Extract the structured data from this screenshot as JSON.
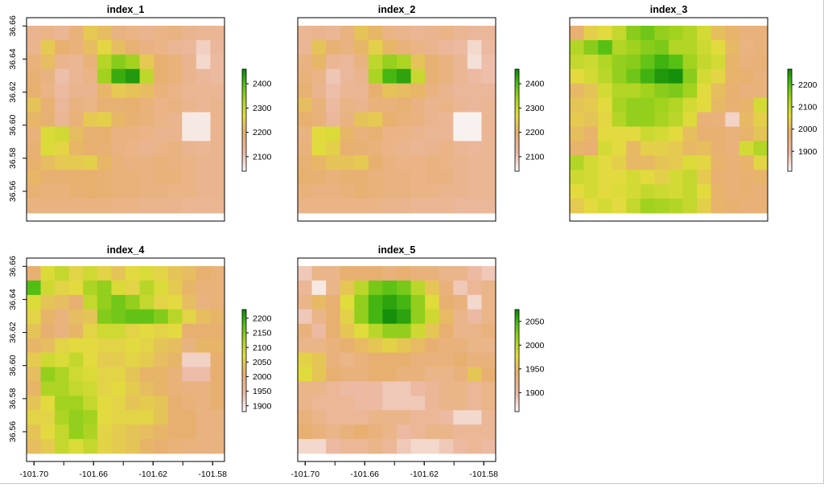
{
  "chart_data": [
    {
      "type": "heatmap",
      "title": "index_1",
      "xlim": [
        -101.705,
        -101.572
      ],
      "ylim": [
        36.542,
        36.665
      ],
      "yticks": [
        "36.56",
        "36.58",
        "36.60",
        "36.62",
        "36.64",
        "36.66"
      ],
      "xticks": [],
      "legend": {
        "ticks": [
          "2100",
          "2200",
          "2300",
          "2400"
        ],
        "range": [
          2040,
          2460
        ]
      },
      "grid_values": [
        [
          2150,
          2160,
          2140,
          2180,
          2240,
          2220,
          2170,
          2160,
          2150,
          2160,
          2170,
          2150,
          2140,
          2140
        ],
        [
          2150,
          2240,
          2200,
          2180,
          2220,
          2260,
          2220,
          2190,
          2170,
          2160,
          2140,
          2130,
          2090,
          2130
        ],
        [
          2180,
          2220,
          2150,
          2140,
          2180,
          2320,
          2360,
          2340,
          2240,
          2200,
          2180,
          2150,
          2080,
          2120
        ],
        [
          2190,
          2170,
          2110,
          2140,
          2160,
          2340,
          2420,
          2440,
          2310,
          2200,
          2180,
          2150,
          2130,
          2120
        ],
        [
          2200,
          2160,
          2120,
          2150,
          2150,
          2210,
          2240,
          2230,
          2220,
          2180,
          2160,
          2140,
          2140,
          2140
        ],
        [
          2230,
          2190,
          2130,
          2170,
          2160,
          2190,
          2190,
          2200,
          2180,
          2160,
          2170,
          2150,
          2140,
          2150
        ],
        [
          2210,
          2190,
          2140,
          2180,
          2240,
          2250,
          2210,
          2190,
          2180,
          2160,
          2150,
          2060,
          2060,
          2150
        ],
        [
          2180,
          2280,
          2290,
          2220,
          2190,
          2200,
          2170,
          2170,
          2160,
          2150,
          2150,
          2060,
          2060,
          2150
        ],
        [
          2190,
          2280,
          2260,
          2210,
          2200,
          2190,
          2170,
          2160,
          2150,
          2160,
          2170,
          2150,
          2140,
          2150
        ],
        [
          2200,
          2220,
          2240,
          2240,
          2250,
          2210,
          2180,
          2170,
          2170,
          2180,
          2170,
          2160,
          2150,
          2150
        ],
        [
          2210,
          2200,
          2190,
          2200,
          2200,
          2190,
          2180,
          2180,
          2170,
          2180,
          2180,
          2160,
          2150,
          2150
        ],
        [
          2190,
          2180,
          2180,
          2190,
          2200,
          2190,
          2180,
          2180,
          2170,
          2170,
          2160,
          2160,
          2150,
          2150
        ],
        [
          2170,
          2170,
          2170,
          2170,
          2170,
          2170,
          2160,
          2160,
          2150,
          2150,
          2150,
          2140,
          2140,
          2140
        ]
      ]
    },
    {
      "type": "heatmap",
      "title": "index_2",
      "xlim": [
        -101.705,
        -101.572
      ],
      "ylim": [
        36.542,
        36.665
      ],
      "yticks": [],
      "xticks": [],
      "legend": {
        "ticks": [
          "2100",
          "2200",
          "2300",
          "2400"
        ],
        "range": [
          2040,
          2460
        ]
      },
      "grid_values": [
        [
          2140,
          2150,
          2140,
          2170,
          2230,
          2210,
          2160,
          2150,
          2140,
          2150,
          2160,
          2140,
          2130,
          2130
        ],
        [
          2140,
          2230,
          2190,
          2170,
          2210,
          2250,
          2210,
          2180,
          2160,
          2150,
          2130,
          2120,
          2080,
          2120
        ],
        [
          2170,
          2210,
          2140,
          2130,
          2170,
          2310,
          2350,
          2330,
          2230,
          2190,
          2170,
          2140,
          2070,
          2110
        ],
        [
          2180,
          2160,
          2100,
          2130,
          2150,
          2330,
          2410,
          2430,
          2300,
          2190,
          2170,
          2140,
          2120,
          2110
        ],
        [
          2190,
          2150,
          2110,
          2140,
          2140,
          2200,
          2230,
          2220,
          2210,
          2170,
          2150,
          2130,
          2130,
          2130
        ],
        [
          2220,
          2180,
          2120,
          2160,
          2150,
          2180,
          2180,
          2190,
          2170,
          2150,
          2160,
          2140,
          2130,
          2140
        ],
        [
          2200,
          2180,
          2130,
          2170,
          2230,
          2240,
          2200,
          2180,
          2170,
          2150,
          2140,
          2050,
          2050,
          2140
        ],
        [
          2170,
          2270,
          2280,
          2210,
          2180,
          2190,
          2160,
          2160,
          2150,
          2140,
          2140,
          2050,
          2050,
          2140
        ],
        [
          2180,
          2270,
          2250,
          2200,
          2190,
          2180,
          2160,
          2150,
          2140,
          2150,
          2160,
          2140,
          2130,
          2140
        ],
        [
          2190,
          2210,
          2230,
          2230,
          2240,
          2200,
          2170,
          2160,
          2160,
          2170,
          2160,
          2150,
          2140,
          2140
        ],
        [
          2200,
          2190,
          2180,
          2190,
          2190,
          2180,
          2170,
          2170,
          2160,
          2170,
          2170,
          2150,
          2140,
          2140
        ],
        [
          2180,
          2170,
          2170,
          2180,
          2190,
          2180,
          2170,
          2170,
          2160,
          2160,
          2150,
          2150,
          2140,
          2140
        ],
        [
          2160,
          2160,
          2160,
          2160,
          2160,
          2160,
          2150,
          2150,
          2140,
          2140,
          2140,
          2130,
          2130,
          2130
        ]
      ]
    },
    {
      "type": "heatmap",
      "title": "index_3",
      "xlim": [
        -101.705,
        -101.572
      ],
      "ylim": [
        36.542,
        36.665
      ],
      "yticks": [],
      "xticks": [],
      "legend": {
        "ticks": [
          "1900",
          "2000",
          "2100",
          "2200"
        ],
        "range": [
          1810,
          2270
        ]
      },
      "grid_values": [
        [
          1980,
          2040,
          2060,
          2100,
          2160,
          2180,
          2150,
          2140,
          2120,
          2080,
          2010,
          1990,
          1960,
          1960
        ],
        [
          2120,
          2160,
          2200,
          2120,
          2140,
          2160,
          2170,
          2120,
          2120,
          2090,
          2060,
          2000,
          1950,
          1960
        ],
        [
          2100,
          2090,
          2120,
          2150,
          2160,
          2190,
          2220,
          2200,
          2140,
          2100,
          2080,
          1990,
          1960,
          1970
        ],
        [
          2060,
          2080,
          2110,
          2150,
          2180,
          2220,
          2250,
          2260,
          2160,
          2080,
          2050,
          1990,
          1980,
          1960
        ],
        [
          2000,
          2020,
          2080,
          2120,
          2120,
          2140,
          2160,
          2170,
          2140,
          2060,
          2010,
          1980,
          1960,
          1960
        ],
        [
          2020,
          2030,
          2060,
          2130,
          2150,
          2150,
          2140,
          2120,
          2080,
          2060,
          2000,
          1980,
          1990,
          2080
        ],
        [
          2030,
          2020,
          2050,
          2120,
          2150,
          2150,
          2130,
          2110,
          2070,
          1970,
          1960,
          1860,
          2000,
          2040
        ],
        [
          2010,
          1990,
          2060,
          2060,
          2060,
          2090,
          2080,
          2060,
          2010,
          1980,
          1980,
          1960,
          1990,
          2020
        ],
        [
          1990,
          1980,
          2080,
          2060,
          2000,
          2040,
          2040,
          2030,
          2000,
          2010,
          1980,
          1960,
          2080,
          2120
        ],
        [
          2120,
          2080,
          2060,
          2040,
          2000,
          2000,
          2020,
          2030,
          2070,
          2050,
          1990,
          1970,
          1990,
          2050
        ],
        [
          2090,
          2080,
          2060,
          2060,
          2080,
          2060,
          2040,
          2080,
          2100,
          2030,
          1980,
          1970,
          1980,
          1990
        ],
        [
          2060,
          2080,
          2060,
          2070,
          2080,
          2100,
          2090,
          2080,
          2100,
          2060,
          1990,
          1970,
          1980,
          1970
        ],
        [
          2030,
          2060,
          2080,
          2060,
          2100,
          2140,
          2130,
          2120,
          2100,
          2040,
          1990,
          1980,
          1970,
          1970
        ]
      ]
    },
    {
      "type": "heatmap",
      "title": "index_4",
      "xlim": [
        -101.705,
        -101.572
      ],
      "ylim": [
        36.542,
        36.665
      ],
      "yticks": [
        "36.56",
        "36.58",
        "36.60",
        "36.62",
        "36.64",
        "36.66"
      ],
      "xticks": [
        "-101.70",
        "-101.66",
        "-101.62",
        "-101.58"
      ],
      "legend": {
        "ticks": [
          "1900",
          "1950",
          "2000",
          "2050",
          "2100",
          "2150",
          "2200"
        ],
        "range": [
          1880,
          2230
        ]
      },
      "grid_values": [
        [
          2010,
          2080,
          2100,
          2060,
          2090,
          2060,
          2040,
          2070,
          2080,
          2060,
          2040,
          2030,
          2010,
          2000
        ],
        [
          2180,
          2090,
          2060,
          2070,
          2120,
          2140,
          2080,
          2060,
          2110,
          2080,
          2050,
          2020,
          2000,
          2000
        ],
        [
          2080,
          2040,
          2030,
          2010,
          2100,
          2140,
          2160,
          2140,
          2100,
          2060,
          2070,
          2030,
          1990,
          2000
        ],
        [
          2060,
          2020,
          1990,
          2030,
          2040,
          2150,
          2160,
          2170,
          2170,
          2150,
          2110,
          2060,
          2030,
          2020
        ],
        [
          2040,
          2010,
          1990,
          2020,
          2060,
          2090,
          2090,
          2060,
          2070,
          2060,
          2070,
          2010,
          2010,
          2010
        ],
        [
          2020,
          2030,
          2060,
          2070,
          2070,
          2060,
          2060,
          2070,
          2060,
          2040,
          2030,
          1990,
          2020,
          2020
        ],
        [
          2050,
          2090,
          2080,
          2100,
          2070,
          2050,
          2050,
          2060,
          2050,
          2030,
          2020,
          1920,
          1920,
          2010
        ],
        [
          2030,
          2140,
          2120,
          2090,
          2080,
          2060,
          2060,
          2040,
          2020,
          2020,
          2000,
          1940,
          1940,
          2010
        ],
        [
          2020,
          2120,
          2120,
          2100,
          2090,
          2060,
          2070,
          2050,
          2030,
          2020,
          2000,
          1990,
          1990,
          2010
        ],
        [
          2040,
          2070,
          2130,
          2130,
          2100,
          2070,
          2060,
          2040,
          2050,
          2040,
          2010,
          2000,
          1990,
          2010
        ],
        [
          2060,
          2060,
          2120,
          2140,
          2130,
          2070,
          2060,
          2060,
          2060,
          2040,
          2010,
          2010,
          1990,
          1990
        ],
        [
          2040,
          2070,
          2100,
          2140,
          2120,
          2060,
          2050,
          2040,
          2030,
          2020,
          2010,
          2010,
          1990,
          1990
        ],
        [
          2030,
          2050,
          2100,
          2080,
          2100,
          2060,
          2050,
          2040,
          2020,
          2010,
          2000,
          1990,
          1990,
          1990
        ]
      ]
    },
    {
      "type": "heatmap",
      "title": "index_5",
      "xlim": [
        -101.705,
        -101.572
      ],
      "ylim": [
        36.542,
        36.665
      ],
      "yticks": [],
      "xticks": [
        "-101.70",
        "-101.66",
        "-101.62",
        "-101.58"
      ],
      "legend": {
        "ticks": [
          "1900",
          "1950",
          "2000",
          "2050"
        ],
        "range": [
          1860,
          2075
        ]
      },
      "grid_values": [
        [
          1890,
          1920,
          1920,
          1940,
          1940,
          1940,
          1930,
          1940,
          1930,
          1930,
          1920,
          1920,
          1900,
          1890
        ],
        [
          1910,
          1870,
          1920,
          1960,
          2000,
          2030,
          2040,
          2030,
          2000,
          1960,
          1930,
          1890,
          1910,
          1920
        ],
        [
          1920,
          1950,
          1940,
          1980,
          2020,
          2050,
          2060,
          2050,
          2020,
          1980,
          1940,
          1930,
          1880,
          1920
        ],
        [
          1890,
          1920,
          1940,
          1970,
          2020,
          2050,
          2070,
          2060,
          2020,
          1990,
          1950,
          1920,
          1900,
          1920
        ],
        [
          1930,
          1900,
          1940,
          1960,
          1980,
          2000,
          2020,
          2020,
          1990,
          1960,
          1940,
          1920,
          1920,
          1930
        ],
        [
          1920,
          1920,
          1930,
          1940,
          1950,
          1960,
          1970,
          1960,
          1950,
          1940,
          1930,
          1930,
          1920,
          1920
        ],
        [
          1970,
          1960,
          1930,
          1920,
          1930,
          1940,
          1940,
          1940,
          1930,
          1930,
          1930,
          1940,
          1930,
          1930
        ],
        [
          1980,
          1960,
          1940,
          1930,
          1930,
          1940,
          1940,
          1930,
          1930,
          1920,
          1920,
          1930,
          1960,
          1940
        ],
        [
          1920,
          1920,
          1910,
          1900,
          1900,
          1900,
          1890,
          1890,
          1900,
          1910,
          1920,
          1920,
          1910,
          1920
        ],
        [
          1920,
          1910,
          1910,
          1910,
          1900,
          1900,
          1890,
          1890,
          1890,
          1910,
          1920,
          1920,
          1910,
          1920
        ],
        [
          1930,
          1920,
          1910,
          1910,
          1910,
          1920,
          1920,
          1920,
          1910,
          1910,
          1900,
          1880,
          1880,
          1910
        ],
        [
          1940,
          1930,
          1920,
          1930,
          1940,
          1930,
          1920,
          1900,
          1910,
          1920,
          1920,
          1910,
          1910,
          1910
        ],
        [
          1880,
          1880,
          1900,
          1910,
          1910,
          1920,
          1910,
          1890,
          1880,
          1880,
          1890,
          1900,
          1910,
          1900
        ]
      ]
    }
  ]
}
